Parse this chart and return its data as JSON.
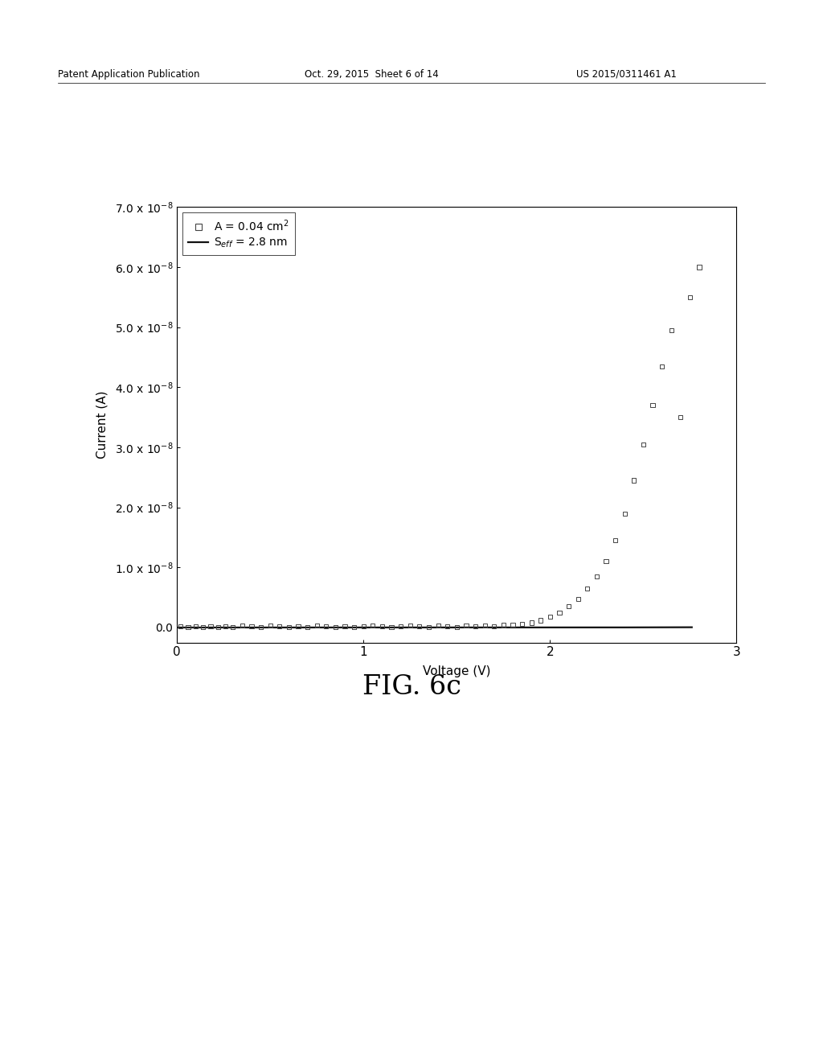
{
  "title_header_left": "Patent Application Publication",
  "title_header_mid": "Oct. 29, 2015  Sheet 6 of 14",
  "title_header_right": "US 2015/0311461 A1",
  "fig_label": "FIG. 6c",
  "xlabel": "Voltage (V)",
  "ylabel": "Current (A)",
  "xlim": [
    0,
    3.0
  ],
  "ylim": [
    -2.5e-09,
    7e-08
  ],
  "yticks": [
    0.0,
    1e-08,
    2e-08,
    3e-08,
    4e-08,
    5e-08,
    6e-08,
    7e-08
  ],
  "xticks": [
    0,
    1,
    2,
    3
  ],
  "background_color": "#ffffff",
  "scatter_color": "#444444",
  "line_color": "#111111",
  "scatter_data_x": [
    0.02,
    0.06,
    0.1,
    0.14,
    0.18,
    0.22,
    0.26,
    0.3,
    0.35,
    0.4,
    0.45,
    0.5,
    0.55,
    0.6,
    0.65,
    0.7,
    0.75,
    0.8,
    0.85,
    0.9,
    0.95,
    1.0,
    1.05,
    1.1,
    1.15,
    1.2,
    1.25,
    1.3,
    1.35,
    1.4,
    1.45,
    1.5,
    1.55,
    1.6,
    1.65,
    1.7,
    1.75,
    1.8,
    1.85,
    1.9,
    1.95,
    2.0,
    2.05,
    2.1,
    2.15,
    2.2,
    2.25,
    2.3,
    2.35,
    2.4,
    2.45,
    2.5,
    2.55,
    2.6,
    2.65,
    2.7,
    2.75,
    2.8
  ],
  "scatter_data_y": [
    2e-10,
    1e-10,
    2e-10,
    1e-10,
    2e-10,
    1e-10,
    2e-10,
    1e-10,
    3e-10,
    2e-10,
    1e-10,
    3e-10,
    2e-10,
    1e-10,
    2e-10,
    1e-10,
    3e-10,
    2e-10,
    1e-10,
    2e-10,
    1e-10,
    2e-10,
    3e-10,
    2e-10,
    1e-10,
    2e-10,
    3e-10,
    2e-10,
    1e-10,
    3e-10,
    2e-10,
    1e-10,
    3e-10,
    2e-10,
    3e-10,
    2e-10,
    4e-10,
    5e-10,
    6e-10,
    8e-10,
    1.2e-09,
    1.8e-09,
    2.5e-09,
    3.5e-09,
    4.8e-09,
    6.5e-09,
    8.5e-09,
    1.1e-08,
    1.45e-08,
    1.9e-08,
    2.45e-08,
    3.05e-08,
    3.7e-08,
    4.35e-08,
    4.95e-08,
    3.5e-08,
    5.5e-08,
    6e-08
  ],
  "diode_I0": 2e-14,
  "diode_n": 14.0,
  "diode_Vt": 0.02585,
  "header_fontsize": 8.5,
  "axis_label_fontsize": 11,
  "tick_fontsize": 10,
  "legend_fontsize": 10,
  "fig_label_fontsize": 24
}
